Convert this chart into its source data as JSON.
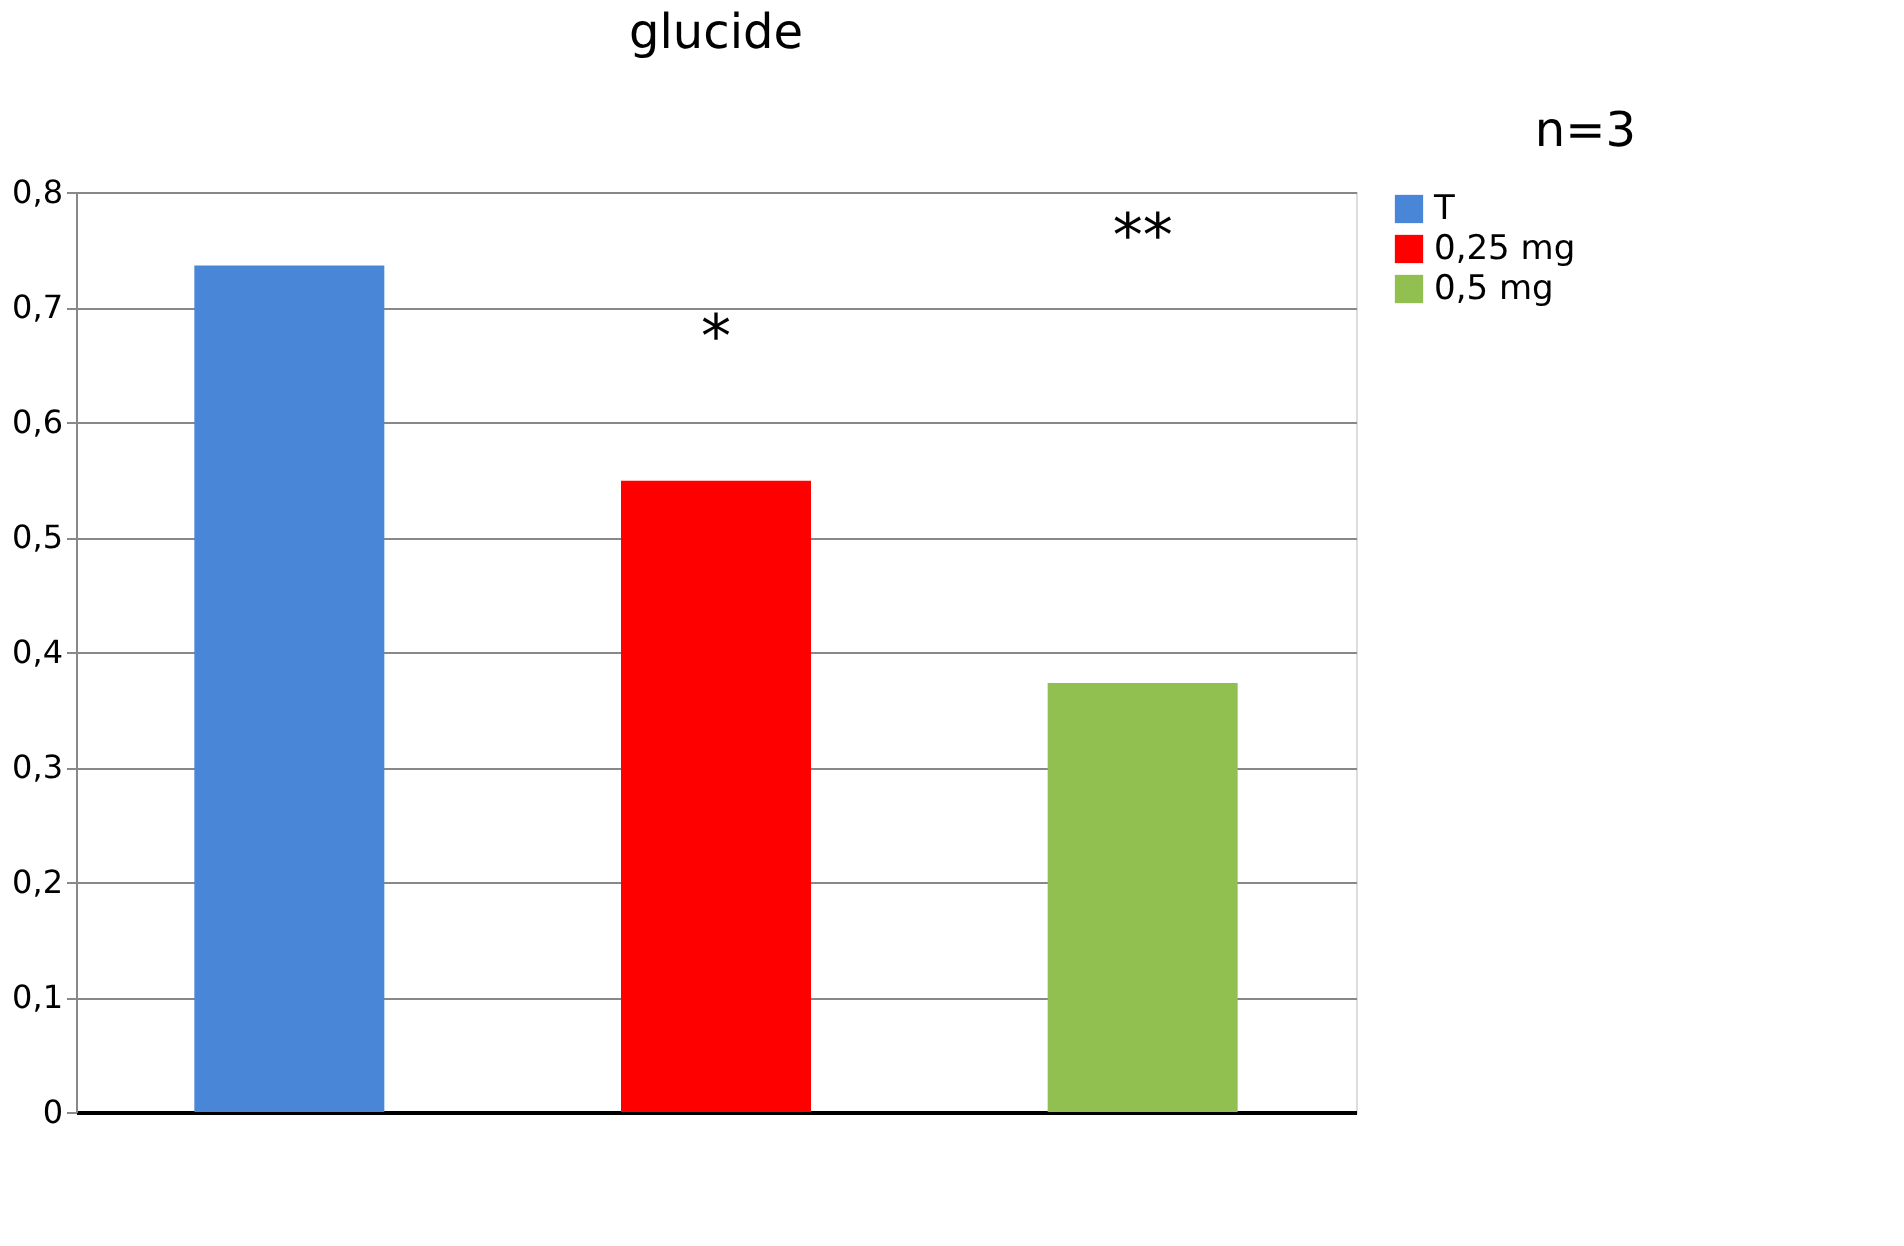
{
  "chart_data": {
    "type": "bar",
    "title": "glucide",
    "categories": [
      null,
      null,
      null
    ],
    "series": [
      {
        "name": "T",
        "color": "#4a86d8",
        "values": [
          0.736,
          null,
          null
        ]
      },
      {
        "name": "0,25 mg",
        "color": "#ff0000",
        "values": [
          null,
          0.549,
          null
        ]
      },
      {
        "name": "0,5 mg",
        "color": "#92c050",
        "values": [
          null,
          null,
          0.373
        ]
      }
    ],
    "annotations": [
      "n=3",
      "*",
      "**"
    ],
    "ylim": [
      0,
      0.8
    ],
    "yticks": [
      {
        "value": 0,
        "label": "0"
      },
      {
        "value": 0.1,
        "label": "0,1"
      },
      {
        "value": 0.2,
        "label": "0,2"
      },
      {
        "value": 0.3,
        "label": "0,3"
      },
      {
        "value": 0.4,
        "label": "0,4"
      },
      {
        "value": 0.5,
        "label": "0,5"
      },
      {
        "value": 0.6,
        "label": "0,6"
      },
      {
        "value": 0.7,
        "label": "0,7"
      },
      {
        "value": 0.8,
        "label": "0,8"
      }
    ],
    "grid": "y",
    "legend": "right"
  }
}
